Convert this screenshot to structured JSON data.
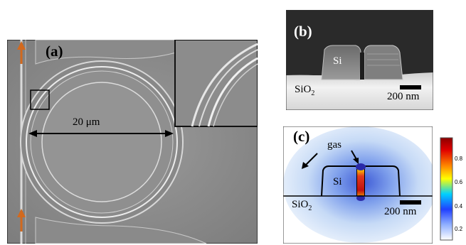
{
  "figure": {
    "panel_a": {
      "label": "(a)",
      "scale_text": "20 μm"
    },
    "panel_b": {
      "label": "(b)",
      "material_si": "Si",
      "material_sio2_base": "SiO",
      "material_sio2_sub": "2",
      "scale_text": "200 nm"
    },
    "panel_c": {
      "label": "(c)",
      "gas_label": "gas",
      "material_si": "Si",
      "material_sio2_base": "SiO",
      "material_sio2_sub": "2",
      "scale_text": "200 nm",
      "colorbar_ticks": [
        "0.8",
        "0.6",
        "0.4",
        "0.2"
      ]
    }
  },
  "colors": {
    "arrow_orange": "#d2691e",
    "sem_gray": "#8e8e8e",
    "colorbar_top": "#8b0000",
    "colorbar_bottom": "#ffffff"
  }
}
